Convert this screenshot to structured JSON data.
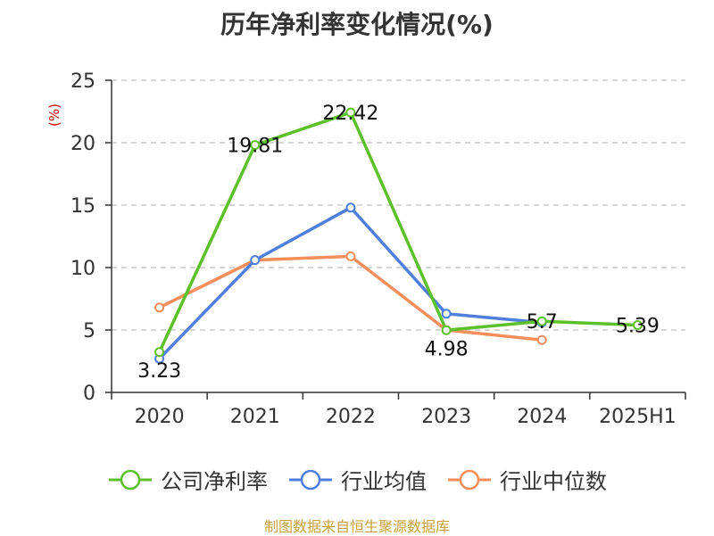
{
  "colors": {
    "company": "#5cc02a",
    "industry_avg": "#4f7fdd",
    "industry_median": "#f58e5a",
    "grid": "#c8c8c8",
    "axis": "#333333",
    "footer": "#c8a040"
  },
  "chart_data": {
    "type": "line",
    "title": "历年净利率变化情况(%)",
    "ylabel": "(%)",
    "categories": [
      "2020",
      "2021",
      "2022",
      "2023",
      "2024",
      "2025H1"
    ],
    "ylim": [
      0,
      25
    ],
    "yticks": [
      "0",
      "5",
      "10",
      "15",
      "20",
      "25"
    ],
    "grid": "horizontal-dashed",
    "legend_position": "bottom",
    "series": [
      {
        "name": "公司净利率",
        "values": [
          3.23,
          19.81,
          22.42,
          4.98,
          5.7,
          5.39
        ],
        "labels": [
          "3.23",
          "19.81",
          "22.42",
          "4.98",
          "5.7",
          "5.39"
        ]
      },
      {
        "name": "行业均值",
        "values": [
          2.7,
          10.6,
          14.8,
          6.3,
          5.6,
          null
        ]
      },
      {
        "name": "行业中位数",
        "values": [
          6.8,
          10.6,
          10.9,
          5.0,
          4.2,
          null
        ]
      }
    ]
  },
  "footer": "制图数据来自恒生聚源数据库"
}
